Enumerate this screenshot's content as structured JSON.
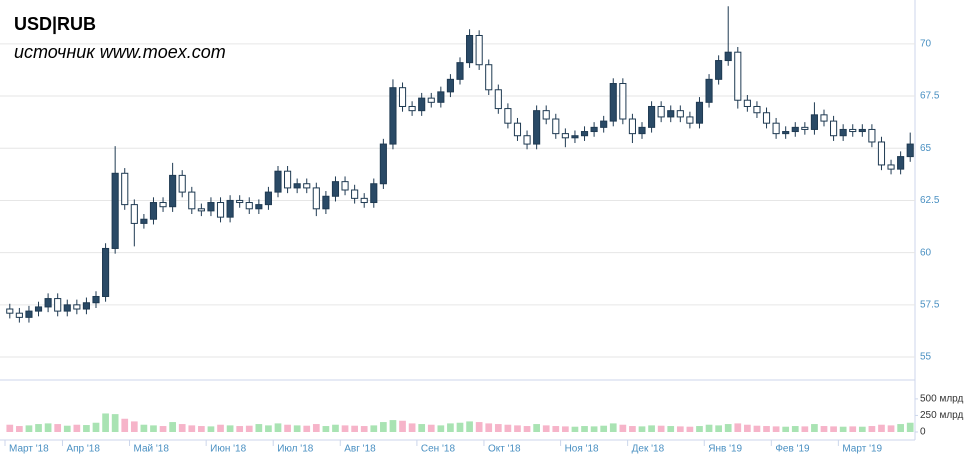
{
  "chart_data": {
    "type": "candlestick",
    "title": "USD|RUB",
    "subtitle": "источник www.moex.com",
    "up_color": "#2a4a66",
    "down_color": "#ffffff",
    "volume_up_color": "#a9e3b3",
    "volume_down_color": "#f6b4c9",
    "open": [
      57.3,
      57.1,
      56.9,
      57.2,
      57.4,
      57.8,
      57.2,
      57.5,
      57.3,
      57.6,
      57.9,
      60.2,
      63.8,
      62.3,
      61.4,
      61.6,
      62.4,
      62.2,
      63.7,
      62.9,
      62.1,
      62.0,
      62.4,
      61.7,
      62.5,
      62.4,
      62.1,
      62.3,
      62.9,
      63.9,
      63.1,
      63.3,
      63.1,
      62.1,
      62.7,
      63.4,
      63.0,
      62.6,
      62.4,
      63.3,
      65.2,
      67.9,
      67.0,
      66.8,
      67.4,
      67.2,
      67.7,
      68.3,
      69.1,
      70.4,
      69.0,
      67.8,
      66.9,
      66.2,
      65.6,
      65.2,
      66.8,
      66.4,
      65.7,
      65.5,
      65.6,
      65.8,
      66.0,
      66.3,
      68.1,
      66.4,
      65.7,
      66.0,
      67.0,
      66.5,
      66.8,
      66.5,
      66.2,
      67.2,
      68.3,
      69.2,
      69.6,
      67.3,
      67.0,
      66.7,
      66.2,
      65.7,
      65.8,
      66.0,
      65.9,
      66.6,
      66.3,
      65.6,
      65.9,
      65.8,
      65.9,
      65.3,
      64.2,
      64.0,
      64.6
    ],
    "high": [
      57.55,
      57.35,
      57.45,
      57.65,
      58.05,
      58.05,
      57.75,
      57.75,
      57.85,
      58.15,
      60.45,
      65.1,
      64.05,
      62.55,
      61.85,
      62.65,
      62.65,
      64.3,
      63.95,
      63.15,
      62.35,
      62.65,
      62.65,
      62.75,
      62.75,
      62.65,
      62.55,
      63.15,
      64.15,
      64.15,
      63.55,
      63.55,
      63.35,
      62.95,
      63.65,
      63.65,
      63.25,
      62.85,
      63.55,
      65.45,
      68.3,
      68.15,
      67.25,
      67.65,
      67.65,
      67.95,
      68.55,
      69.35,
      70.7,
      70.65,
      69.25,
      68.05,
      67.15,
      66.45,
      65.85,
      67.05,
      67.05,
      66.65,
      65.95,
      65.85,
      66.05,
      66.25,
      66.55,
      68.35,
      68.35,
      66.65,
      66.25,
      67.25,
      67.25,
      67.05,
      67.05,
      66.75,
      67.45,
      68.55,
      69.45,
      71.8,
      69.85,
      67.55,
      67.25,
      66.95,
      66.45,
      66.05,
      66.25,
      66.25,
      67.2,
      66.85,
      66.55,
      66.15,
      66.15,
      66.15,
      66.15,
      65.55,
      64.45,
      64.85,
      65.75
    ],
    "low": [
      56.85,
      56.65,
      56.65,
      56.95,
      57.15,
      56.95,
      56.95,
      57.05,
      57.05,
      57.35,
      57.65,
      59.95,
      62.05,
      60.3,
      61.15,
      61.35,
      61.95,
      61.95,
      62.65,
      61.85,
      61.75,
      61.75,
      61.45,
      61.45,
      62.15,
      61.85,
      61.85,
      62.05,
      62.65,
      62.85,
      62.85,
      62.85,
      61.75,
      61.85,
      62.45,
      62.75,
      62.35,
      62.15,
      62.15,
      63.05,
      64.95,
      66.75,
      66.55,
      66.55,
      66.95,
      66.95,
      67.45,
      68.05,
      68.85,
      68.75,
      67.55,
      66.65,
      65.95,
      65.35,
      64.95,
      64.95,
      66.15,
      65.45,
      65.05,
      65.25,
      65.35,
      65.55,
      65.75,
      66.05,
      66.15,
      65.25,
      65.45,
      65.75,
      66.25,
      66.25,
      66.25,
      65.95,
      65.95,
      66.95,
      68.05,
      68.95,
      66.9,
      66.75,
      66.45,
      65.95,
      65.45,
      65.45,
      65.55,
      65.65,
      65.65,
      66.05,
      65.35,
      65.35,
      65.55,
      65.55,
      65.05,
      63.95,
      63.75,
      63.75,
      64.35
    ],
    "close": [
      57.1,
      56.9,
      57.2,
      57.4,
      57.8,
      57.2,
      57.5,
      57.3,
      57.6,
      57.9,
      60.2,
      63.8,
      62.3,
      61.4,
      61.6,
      62.4,
      62.2,
      63.7,
      62.9,
      62.1,
      62.0,
      62.4,
      61.7,
      62.5,
      62.4,
      62.1,
      62.3,
      62.9,
      63.9,
      63.1,
      63.3,
      63.1,
      62.1,
      62.7,
      63.4,
      63.0,
      62.6,
      62.4,
      63.3,
      65.2,
      67.9,
      67.0,
      66.8,
      67.4,
      67.2,
      67.7,
      68.3,
      69.1,
      70.4,
      69.0,
      67.8,
      66.9,
      66.2,
      65.6,
      65.2,
      66.8,
      66.4,
      65.7,
      65.5,
      65.6,
      65.8,
      66.0,
      66.3,
      68.1,
      66.4,
      65.7,
      66.0,
      67.0,
      66.5,
      66.8,
      66.5,
      66.2,
      67.2,
      68.3,
      69.2,
      69.6,
      67.3,
      67.0,
      66.7,
      66.2,
      65.7,
      65.8,
      66.0,
      65.9,
      66.6,
      66.3,
      65.6,
      65.9,
      65.8,
      65.9,
      65.3,
      64.2,
      64.0,
      64.6,
      65.2
    ],
    "volume": [
      110,
      90,
      100,
      120,
      130,
      120,
      95,
      110,
      105,
      140,
      280,
      270,
      200,
      160,
      110,
      100,
      90,
      150,
      120,
      100,
      90,
      85,
      110,
      100,
      90,
      95,
      120,
      100,
      130,
      110,
      100,
      95,
      120,
      90,
      110,
      100,
      95,
      90,
      100,
      150,
      180,
      170,
      130,
      120,
      110,
      100,
      130,
      140,
      160,
      150,
      130,
      120,
      110,
      100,
      90,
      120,
      100,
      90,
      85,
      80,
      90,
      85,
      95,
      130,
      110,
      90,
      85,
      100,
      95,
      90,
      85,
      80,
      90,
      110,
      100,
      120,
      130,
      110,
      95,
      90,
      85,
      80,
      90,
      85,
      120,
      90,
      85,
      80,
      85,
      80,
      90,
      110,
      100,
      120,
      140
    ],
    "xlim": [
      0,
      95
    ],
    "xticks": [
      {
        "value": 0,
        "label": "Март '18"
      },
      {
        "value": 6,
        "label": "Апр '18"
      },
      {
        "value": 13,
        "label": "Май '18"
      },
      {
        "value": 21,
        "label": "Июн '18"
      },
      {
        "value": 28,
        "label": "Июл '18"
      },
      {
        "value": 35,
        "label": "Авг '18"
      },
      {
        "value": 43,
        "label": "Сен '18"
      },
      {
        "value": 50,
        "label": "Окт '18"
      },
      {
        "value": 58,
        "label": "Ноя '18"
      },
      {
        "value": 65,
        "label": "Дек '18"
      },
      {
        "value": 73,
        "label": "Янв '19"
      },
      {
        "value": 80,
        "label": "Фев '19"
      },
      {
        "value": 87,
        "label": "Март '19"
      }
    ],
    "ylim": [
      53.9,
      72.1
    ],
    "yticks": [
      55,
      57.5,
      60,
      62.5,
      65,
      67.5,
      70
    ],
    "y2lim": [
      0,
      740
    ],
    "y2ticks": [
      0,
      {
        "value": 250,
        "label": "250 млрд"
      },
      {
        "value": 500,
        "label": "500 млрд"
      }
    ],
    "grid": true
  }
}
